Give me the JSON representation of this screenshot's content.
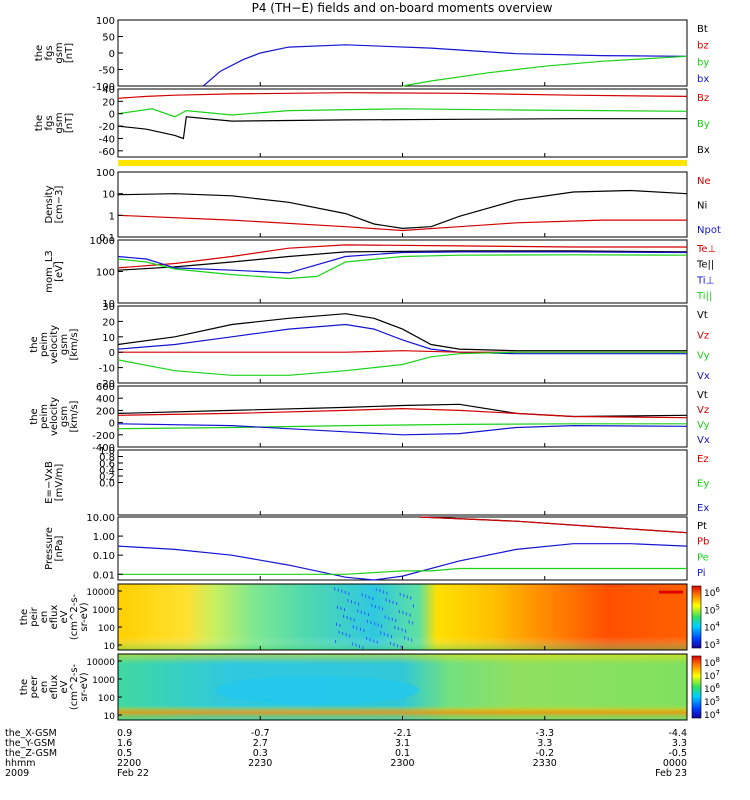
{
  "title": "P4 (TH−E) fields and on-board moments overview",
  "colors": {
    "black": "#000000",
    "red": "#d40000",
    "green": "#19d219",
    "blue": "#1414d2",
    "yellow": "#ffe600"
  },
  "chart_data": [
    {
      "id": "fgl",
      "type": "line",
      "ylabel": [
        "the",
        "fgs",
        "gsm",
        "[nT]"
      ],
      "ylim": [
        -100,
        100
      ],
      "ticks": [
        100,
        50,
        0,
        -50,
        -100
      ],
      "legend": [
        {
          "label": "Bt",
          "color": "black"
        },
        {
          "label": "bz",
          "color": "red"
        },
        {
          "label": "by",
          "color": "green"
        },
        {
          "label": "bx",
          "color": "blue"
        }
      ],
      "series": [
        {
          "name": "bx",
          "color": "blue",
          "x": [
            0.15,
            0.18,
            0.22,
            0.25,
            0.3,
            0.4,
            0.55,
            0.7,
            0.85,
            1.0
          ],
          "y": [
            -100,
            -55,
            -20,
            0,
            18,
            25,
            15,
            -2,
            -8,
            -10
          ]
        },
        {
          "name": "by",
          "color": "green",
          "x": [
            0.5,
            0.55,
            0.65,
            0.75,
            0.85,
            1.0
          ],
          "y": [
            -100,
            -85,
            -60,
            -40,
            -25,
            -10
          ]
        }
      ]
    },
    {
      "id": "fgs",
      "type": "line",
      "ylabel": [
        "the",
        "fgs",
        "gsm",
        "[nT]"
      ],
      "ylim": [
        -70,
        40
      ],
      "ticks": [
        40,
        20,
        0,
        -20,
        -40,
        -60
      ],
      "legend": [
        {
          "label": "Bz",
          "color": "red"
        },
        {
          "label": "By",
          "color": "green"
        },
        {
          "label": "Bx",
          "color": "black"
        }
      ],
      "series": [
        {
          "name": "Bz",
          "color": "red",
          "x": [
            0,
            0.05,
            0.1,
            0.2,
            0.4,
            0.6,
            0.8,
            1.0
          ],
          "y": [
            25,
            28,
            30,
            32,
            34,
            33,
            30,
            28
          ]
        },
        {
          "name": "By",
          "color": "green",
          "x": [
            0,
            0.06,
            0.1,
            0.12,
            0.2,
            0.3,
            0.5,
            0.7,
            1.0
          ],
          "y": [
            0,
            8,
            -5,
            5,
            -2,
            5,
            8,
            6,
            4
          ]
        },
        {
          "name": "Bx",
          "color": "black",
          "x": [
            0,
            0.05,
            0.1,
            0.115,
            0.12,
            0.2,
            0.4,
            0.6,
            0.8,
            1.0
          ],
          "y": [
            -20,
            -25,
            -35,
            -40,
            -5,
            -12,
            -10,
            -9,
            -8,
            -8
          ]
        }
      ]
    },
    {
      "id": "density",
      "type": "line",
      "log": true,
      "ylabel": [
        "Density",
        "[cm−3]"
      ],
      "ylim": [
        0.1,
        100
      ],
      "ticks": [
        100,
        10,
        1,
        0.1
      ],
      "tick_labels": [
        "100",
        "10",
        "1",
        "0.1"
      ],
      "legend": [
        {
          "label": "Ne",
          "color": "red"
        },
        {
          "label": "Ni",
          "color": "black"
        },
        {
          "label": "Npot",
          "color": "blue"
        }
      ],
      "series": [
        {
          "name": "Ni",
          "color": "black",
          "x": [
            0,
            0.1,
            0.2,
            0.3,
            0.4,
            0.45,
            0.5,
            0.55,
            0.6,
            0.7,
            0.8,
            0.9,
            1.0
          ],
          "y": [
            9,
            10,
            8,
            4,
            1.2,
            0.4,
            0.25,
            0.3,
            0.9,
            5,
            12,
            14,
            10
          ]
        },
        {
          "name": "Ne",
          "color": "red",
          "x": [
            0,
            0.2,
            0.4,
            0.5,
            0.6,
            0.7,
            0.85,
            1.0
          ],
          "y": [
            1,
            0.6,
            0.3,
            0.2,
            0.3,
            0.45,
            0.6,
            0.6
          ]
        }
      ]
    },
    {
      "id": "temp",
      "type": "line",
      "log": true,
      "ylabel": [
        "mom_L3",
        "[eV]"
      ],
      "ylim": [
        10,
        1000
      ],
      "ticks": [
        1000,
        100,
        10
      ],
      "tick_labels": [
        "1000",
        "100",
        "10"
      ],
      "legend": [
        {
          "label": "Te⊥",
          "color": "red"
        },
        {
          "label": "Te||",
          "color": "black"
        },
        {
          "label": "Ti⊥",
          "color": "blue"
        },
        {
          "label": "Ti||",
          "color": "green"
        }
      ],
      "series": [
        {
          "name": "Te⊥",
          "color": "red",
          "x": [
            0,
            0.1,
            0.2,
            0.3,
            0.4,
            0.6,
            0.8,
            1.0
          ],
          "y": [
            130,
            180,
            300,
            550,
            700,
            650,
            600,
            600
          ]
        },
        {
          "name": "Te||",
          "color": "black",
          "x": [
            0,
            0.1,
            0.2,
            0.3,
            0.4,
            0.6,
            0.8,
            1.0
          ],
          "y": [
            110,
            140,
            200,
            300,
            420,
            450,
            450,
            420
          ]
        },
        {
          "name": "Ti⊥",
          "color": "blue",
          "x": [
            0,
            0.05,
            0.1,
            0.2,
            0.3,
            0.4,
            0.5,
            0.6,
            0.8,
            1.0
          ],
          "y": [
            300,
            250,
            130,
            110,
            90,
            300,
            400,
            420,
            420,
            400
          ]
        },
        {
          "name": "Ti||",
          "color": "green",
          "x": [
            0,
            0.05,
            0.1,
            0.2,
            0.3,
            0.35,
            0.4,
            0.5,
            0.6,
            0.8,
            1.0
          ],
          "y": [
            250,
            200,
            120,
            80,
            60,
            70,
            200,
            300,
            330,
            340,
            330
          ]
        }
      ]
    },
    {
      "id": "peim",
      "type": "line",
      "ylabel": [
        "the",
        "peim",
        "velocity",
        "gsm",
        "[km/s]"
      ],
      "ylim": [
        -20,
        30
      ],
      "ticks": [
        30,
        20,
        10,
        0,
        -10,
        -20
      ],
      "legend": [
        {
          "label": "Vt",
          "color": "black"
        },
        {
          "label": "Vz",
          "color": "red"
        },
        {
          "label": "Vy",
          "color": "green"
        },
        {
          "label": "Vx",
          "color": "blue"
        }
      ],
      "series": [
        {
          "name": "Vt",
          "color": "black",
          "x": [
            0,
            0.1,
            0.2,
            0.3,
            0.4,
            0.45,
            0.5,
            0.55,
            0.6,
            0.7,
            1.0
          ],
          "y": [
            5,
            10,
            18,
            22,
            25,
            22,
            15,
            5,
            2,
            1,
            1
          ]
        },
        {
          "name": "Vx",
          "color": "blue",
          "x": [
            0,
            0.1,
            0.2,
            0.3,
            0.4,
            0.45,
            0.5,
            0.55,
            0.6,
            0.7,
            1.0
          ],
          "y": [
            2,
            5,
            10,
            15,
            18,
            15,
            8,
            2,
            0,
            -1,
            -1
          ]
        },
        {
          "name": "Vz",
          "color": "red",
          "x": [
            0,
            0.2,
            0.4,
            0.5,
            0.6,
            0.8,
            1.0
          ],
          "y": [
            0,
            0,
            0,
            1,
            0,
            0,
            0
          ]
        },
        {
          "name": "Vy",
          "color": "green",
          "x": [
            0,
            0.1,
            0.2,
            0.3,
            0.4,
            0.5,
            0.55,
            0.6,
            0.7,
            1.0
          ],
          "y": [
            -5,
            -12,
            -15,
            -15,
            -12,
            -8,
            -3,
            -1,
            0,
            0
          ]
        }
      ]
    },
    {
      "id": "peir",
      "type": "line",
      "ylabel": [
        "the",
        "peim",
        "velocity",
        "gsm",
        "[km/s]"
      ],
      "ylim": [
        -400,
        600
      ],
      "ticks": [
        600,
        400,
        200,
        0,
        -200,
        -400
      ],
      "legend": [
        {
          "label": "Vt",
          "color": "black"
        },
        {
          "label": "Vz",
          "color": "red"
        },
        {
          "label": "Vy",
          "color": "green"
        },
        {
          "label": "Vx",
          "color": "blue"
        }
      ],
      "series": [
        {
          "name": "Vt",
          "color": "black",
          "x": [
            0,
            0.2,
            0.4,
            0.5,
            0.6,
            0.7,
            0.8,
            1.0
          ],
          "y": [
            150,
            200,
            250,
            280,
            300,
            150,
            100,
            120
          ]
        },
        {
          "name": "Vz",
          "color": "red",
          "x": [
            0,
            0.2,
            0.4,
            0.5,
            0.6,
            0.8,
            1.0
          ],
          "y": [
            120,
            150,
            200,
            230,
            200,
            100,
            80
          ]
        },
        {
          "name": "Vy",
          "color": "green",
          "x": [
            0,
            0.2,
            0.4,
            0.5,
            0.6,
            0.8,
            1.0
          ],
          "y": [
            -100,
            -80,
            -50,
            -40,
            -30,
            -20,
            -20
          ]
        },
        {
          "name": "Vx",
          "color": "blue",
          "x": [
            0,
            0.2,
            0.4,
            0.5,
            0.6,
            0.7,
            0.8,
            1.0
          ],
          "y": [
            -20,
            -50,
            -150,
            -200,
            -180,
            -80,
            -50,
            -60
          ]
        }
      ]
    },
    {
      "id": "efield",
      "type": "line",
      "ylabel": [
        "E=−VxB",
        "[mV/m]"
      ],
      "ylim": [
        -1,
        1
      ],
      "ticks": [
        1.0,
        0.8,
        0.6,
        0.4,
        0.2,
        0.0
      ],
      "tick_labels": [
        "1.0",
        "0.8",
        "0.6",
        "0.4",
        "0.2",
        "0.0"
      ],
      "legend": [
        {
          "label": "Ez",
          "color": "red"
        },
        {
          "label": "Ey",
          "color": "green"
        },
        {
          "label": "Ex",
          "color": "blue"
        }
      ],
      "series": []
    },
    {
      "id": "pressure",
      "type": "line",
      "log": true,
      "ylabel": [
        "Pressure",
        "[nPa]"
      ],
      "ylim": [
        0.005,
        10
      ],
      "ticks": [
        10,
        1,
        0.1,
        0.01
      ],
      "tick_labels": [
        "10.00",
        "1.00",
        "0.10",
        "0.01"
      ],
      "legend": [
        {
          "label": "Pt",
          "color": "black"
        },
        {
          "label": "Pb",
          "color": "red"
        },
        {
          "label": "Pe",
          "color": "green"
        },
        {
          "label": "Pi",
          "color": "blue"
        }
      ],
      "series": [
        {
          "name": "Pt",
          "color": "black",
          "x": [
            0.53,
            0.7,
            0.85,
            1.0
          ],
          "y": [
            10,
            6,
            3,
            1.5
          ]
        },
        {
          "name": "Pb",
          "color": "red",
          "x": [
            0.53,
            0.7,
            0.85,
            1.0
          ],
          "y": [
            10,
            6,
            3,
            1.5
          ]
        },
        {
          "name": "Pi",
          "color": "blue",
          "x": [
            0,
            0.1,
            0.2,
            0.3,
            0.4,
            0.45,
            0.5,
            0.6,
            0.7,
            0.8,
            0.9,
            1.0
          ],
          "y": [
            0.3,
            0.2,
            0.1,
            0.03,
            0.007,
            0.005,
            0.008,
            0.05,
            0.2,
            0.4,
            0.4,
            0.3
          ]
        },
        {
          "name": "Pe",
          "color": "green",
          "x": [
            0,
            0.2,
            0.4,
            0.5,
            0.55,
            0.6,
            0.7,
            0.85,
            1.0
          ],
          "y": [
            0.01,
            0.01,
            0.01,
            0.015,
            0.015,
            0.02,
            0.02,
            0.02,
            0.02
          ]
        }
      ]
    },
    {
      "id": "peir_spec",
      "type": "heatmap",
      "ylabel": [
        "the",
        "peir",
        "en",
        "eflux",
        "eV",
        "(cm^2-s-",
        "sr-eV)"
      ],
      "ytick_labels": [
        "10000",
        "1000",
        "100",
        "10"
      ],
      "colorbar": [
        "10^6",
        "10^5",
        "10^4",
        "10^3"
      ]
    },
    {
      "id": "peer_spec",
      "type": "heatmap",
      "ylabel": [
        "the",
        "peer",
        "en",
        "eflux",
        "eV",
        "(cm^2-s-",
        "sr-eV)"
      ],
      "ytick_labels": [
        "10000",
        "1000",
        "100",
        "10"
      ],
      "colorbar": [
        "10^8",
        "10^7",
        "10^6",
        "10^5",
        "10^4"
      ]
    }
  ],
  "xaxis": {
    "row_labels": [
      "the_X-GSM",
      "the_Y-GSM",
      "the_Z-GSM",
      "hhmm",
      "2009"
    ],
    "columns": [
      {
        "vals": [
          "0.9",
          "1.6",
          "0.5",
          "2200",
          "Feb 22"
        ]
      },
      {
        "vals": [
          "-0.7",
          "2.7",
          "0.3",
          "2230",
          ""
        ]
      },
      {
        "vals": [
          "-2.1",
          "3.1",
          "0.1",
          "2300",
          ""
        ]
      },
      {
        "vals": [
          "-3.3",
          "3.3",
          "-0.2",
          "2330",
          ""
        ]
      },
      {
        "vals": [
          "-4.4",
          "3.3",
          "-0.5",
          "0000",
          "Feb 23"
        ]
      }
    ]
  }
}
